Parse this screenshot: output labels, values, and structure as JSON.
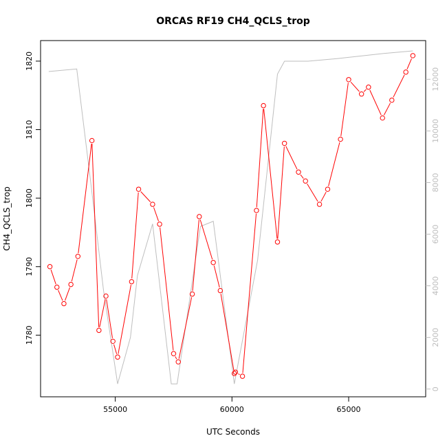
{
  "chart_data": {
    "type": "line",
    "title": "ORCAS RF19 CH4_QCLS_trop",
    "xlabel": "UTC Seconds",
    "ylabel": "CH4_QCLS_trop",
    "xlim": [
      51800,
      68300
    ],
    "ylim": [
      1771,
      1823
    ],
    "y2lim": [
      -300,
      13500
    ],
    "x_ticks": [
      55000,
      60000,
      65000
    ],
    "y_ticks": [
      1780,
      1790,
      1800,
      1810,
      1820
    ],
    "y2_ticks": [
      0,
      2000,
      4000,
      6000,
      8000,
      10000,
      12000
    ],
    "grid": false,
    "series": [
      {
        "role": "primary",
        "color": "#ff0000",
        "marker": "open-circle",
        "x": [
          52200,
          52500,
          52800,
          53100,
          53400,
          54000,
          54300,
          54600,
          54900,
          55100,
          55700,
          56000,
          56600,
          56900,
          57500,
          57700,
          58300,
          58600,
          59200,
          59500,
          60100,
          60150,
          60450,
          61050,
          61350,
          61950,
          62250,
          62850,
          63150,
          63750,
          64100,
          64650,
          65000,
          65550,
          65850,
          66450,
          66850,
          67450,
          67750
        ],
        "y": [
          1790.0,
          1787.0,
          1784.6,
          1787.4,
          1791.5,
          1808.4,
          1780.7,
          1785.7,
          1779.1,
          1776.8,
          1787.8,
          1801.3,
          1799.1,
          1796.2,
          1777.3,
          1776.1,
          1786.0,
          1797.3,
          1790.6,
          1786.5,
          1774.4,
          1774.6,
          1774.0,
          1798.2,
          1813.5,
          1793.6,
          1808.0,
          1803.8,
          1802.5,
          1799.1,
          1801.3,
          1808.6,
          1817.3,
          1815.2,
          1816.2,
          1811.7,
          1814.3,
          1818.4,
          1820.8
        ]
      },
      {
        "role": "secondary",
        "color": "#bebebe",
        "marker": "none",
        "x": [
          52150,
          53350,
          53950,
          54500,
          55100,
          55650,
          55950,
          56600,
          57400,
          57650,
          58650,
          59200,
          60100,
          61100,
          61950,
          62250,
          63250,
          64500,
          65500,
          66500,
          67750
        ],
        "y": [
          12300,
          12400,
          8000,
          3800,
          200,
          2000,
          4400,
          6400,
          200,
          200,
          6300,
          6500,
          200,
          5000,
          12200,
          12700,
          12700,
          12800,
          12900,
          13000,
          13100
        ]
      }
    ]
  }
}
